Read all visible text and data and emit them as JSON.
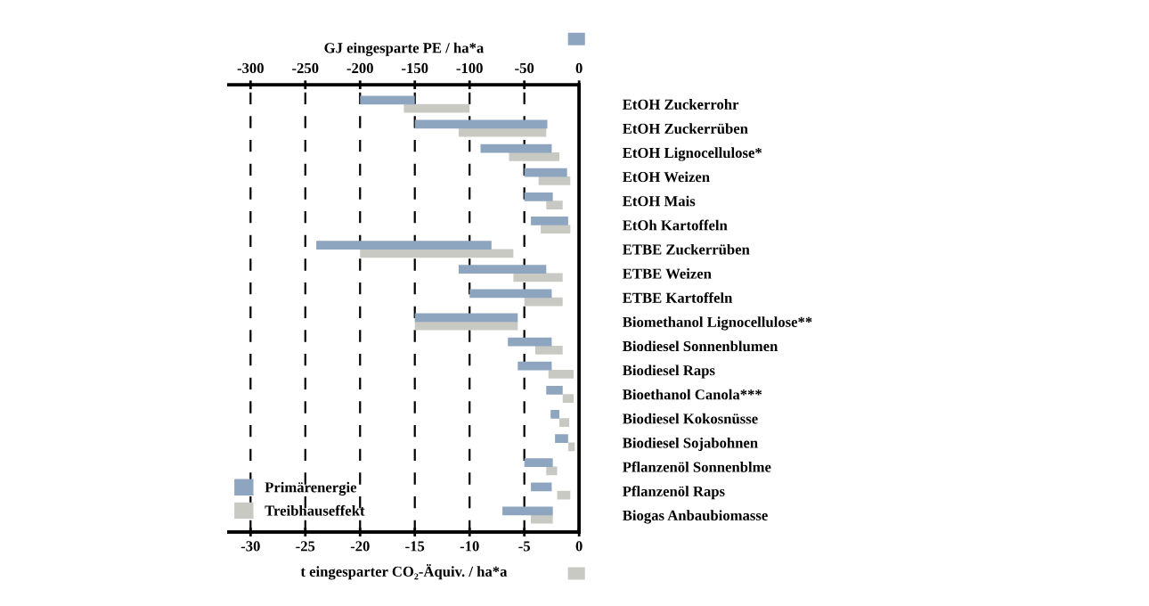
{
  "chart_data": {
    "type": "bar",
    "orientation": "horizontal",
    "categories": [
      "EtOH Zuckerrohr",
      "EtOH Zuckerrüben",
      "EtOH Lignocellulose*",
      "EtOH Weizen",
      "EtOH Mais",
      "EtOh Kartoffeln",
      "ETBE Zuckerrüben",
      "ETBE Weizen",
      "ETBE Kartoffeln",
      "Biomethanol Lignocellulose**",
      "Biodiesel Sonnenblumen",
      "Biodiesel Raps",
      "Bioethanol Canola***",
      "Biodiesel Kokosnüsse",
      "Biodiesel Sojabohnen",
      "Pflanzenöl Sonnenblme",
      "Pflanzenöl Raps",
      "Biogas Anbaubiomasse"
    ],
    "series": [
      {
        "name": "Primärenergie",
        "color": "#8ea5c0",
        "axis": "x2",
        "base": [
          -200,
          -150,
          -90,
          -50,
          -50,
          -44,
          -240,
          -110,
          -100,
          -150,
          -65,
          -56,
          -30,
          -26,
          -22,
          -50,
          -44,
          -70
        ],
        "values": [
          50,
          121,
          65,
          39,
          26,
          34,
          160,
          80,
          75,
          94,
          40,
          31,
          15,
          8,
          12,
          26,
          19,
          46
        ]
      },
      {
        "name": "Treibhauseffekt",
        "color": "#c9c9c4",
        "base": [
          -16,
          -11,
          -6.4,
          -3.7,
          -3.0,
          -3.5,
          -20,
          -6,
          -5,
          -15,
          -4,
          -2.8,
          -1.5,
          -1.8,
          -1.0,
          -3.0,
          -2.0,
          -4.4
        ],
        "values": [
          6,
          8,
          4.6,
          2.9,
          1.5,
          2.7,
          14,
          4.5,
          3.5,
          9.4,
          2.5,
          2.3,
          1.0,
          0.9,
          0.6,
          1.0,
          1.2,
          2.0
        ]
      }
    ],
    "xlabel": "t eingesparter CO₂-Äquiv. / ha*a",
    "xlim": [
      -32,
      0
    ],
    "xticks": [
      -30,
      -25,
      -20,
      -15,
      -10,
      -5,
      0
    ],
    "x2label": "GJ eingesparte PE / ha*a",
    "x2lim": [
      -320,
      0
    ],
    "x2ticks": [
      -300,
      -250,
      -200,
      -150,
      -100,
      -50,
      0
    ],
    "grid": "x",
    "legend": "bottom left"
  }
}
